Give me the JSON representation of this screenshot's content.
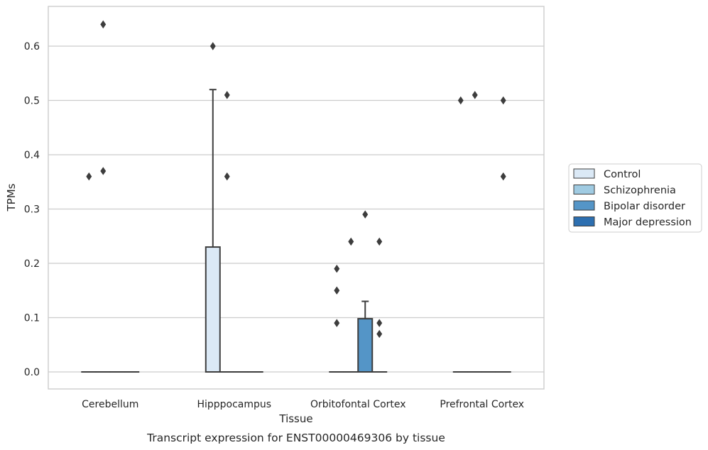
{
  "caption": "Transcript expression for ENST00000469306 by tissue",
  "colors": {
    "control": "#dbe9f6",
    "schizophrenia": "#a0cbe2",
    "bipolar": "#5495c7",
    "depression": "#2d6fb0",
    "grid": "#cccccc",
    "box_edge": "#3d3d3d",
    "outlier": "#3d3d3d"
  },
  "chart_data": {
    "type": "box",
    "xlabel": "Tissue",
    "ylabel": "TPMs",
    "ylim": [
      -0.032,
      0.66
    ],
    "yticks": [
      0.0,
      0.1,
      0.2,
      0.3,
      0.4,
      0.5,
      0.6
    ],
    "ytick_labels": [
      "0.0",
      "0.1",
      "0.2",
      "0.3",
      "0.4",
      "0.5",
      "0.6"
    ],
    "grid": "horizontal",
    "legend_position": "right",
    "categories": [
      "Cerebellum",
      "Hipppocampus",
      "Orbitofontal Cortex",
      "Prefrontal Cortex"
    ],
    "series": [
      {
        "name": "Control",
        "color_key": "control",
        "boxes": [
          {
            "category": "Cerebellum",
            "q1": 0,
            "median": 0,
            "q3": 0,
            "whisker_low": 0,
            "whisker_high": 0,
            "outliers": [
              0.36
            ]
          },
          {
            "category": "Hipppocampus",
            "q1": 0,
            "median": 0,
            "q3": 0.23,
            "whisker_low": 0,
            "whisker_high": 0.52,
            "outliers": [
              0.6
            ]
          },
          {
            "category": "Orbitofontal Cortex",
            "q1": 0,
            "median": 0,
            "q3": 0,
            "whisker_low": 0,
            "whisker_high": 0,
            "outliers": [
              0.19,
              0.15,
              0.09
            ]
          },
          {
            "category": "Prefrontal Cortex",
            "q1": 0,
            "median": 0,
            "q3": 0,
            "whisker_low": 0,
            "whisker_high": 0,
            "outliers": [
              0.5
            ]
          }
        ]
      },
      {
        "name": "Schizophrenia",
        "color_key": "schizophrenia",
        "boxes": [
          {
            "category": "Cerebellum",
            "q1": 0,
            "median": 0,
            "q3": 0,
            "whisker_low": 0,
            "whisker_high": 0,
            "outliers": [
              0.64,
              0.37
            ]
          },
          {
            "category": "Hipppocampus",
            "q1": 0,
            "median": 0,
            "q3": 0,
            "whisker_low": 0,
            "whisker_high": 0,
            "outliers": [
              0.51,
              0.36
            ]
          },
          {
            "category": "Orbitofontal Cortex",
            "q1": 0,
            "median": 0,
            "q3": 0,
            "whisker_low": 0,
            "whisker_high": 0,
            "outliers": [
              0.24
            ]
          },
          {
            "category": "Prefrontal Cortex",
            "q1": 0,
            "median": 0,
            "q3": 0,
            "whisker_low": 0,
            "whisker_high": 0,
            "outliers": [
              0.51
            ]
          }
        ]
      },
      {
        "name": "Bipolar disorder",
        "color_key": "bipolar",
        "boxes": [
          {
            "category": "Cerebellum",
            "q1": 0,
            "median": 0,
            "q3": 0,
            "whisker_low": 0,
            "whisker_high": 0,
            "outliers": []
          },
          {
            "category": "Hipppocampus",
            "q1": 0,
            "median": 0,
            "q3": 0,
            "whisker_low": 0,
            "whisker_high": 0,
            "outliers": []
          },
          {
            "category": "Orbitofontal Cortex",
            "q1": 0,
            "median": 0,
            "q3": 0.098,
            "whisker_low": 0,
            "whisker_high": 0.13,
            "outliers": [
              0.29
            ]
          },
          {
            "category": "Prefrontal Cortex",
            "q1": 0,
            "median": 0,
            "q3": 0,
            "whisker_low": 0,
            "whisker_high": 0,
            "outliers": []
          }
        ]
      },
      {
        "name": "Major depression",
        "color_key": "depression",
        "boxes": [
          {
            "category": "Cerebellum",
            "q1": 0,
            "median": 0,
            "q3": 0,
            "whisker_low": 0,
            "whisker_high": 0,
            "outliers": []
          },
          {
            "category": "Hipppocampus",
            "q1": 0,
            "median": 0,
            "q3": 0,
            "whisker_low": 0,
            "whisker_high": 0,
            "outliers": []
          },
          {
            "category": "Orbitofontal Cortex",
            "q1": 0,
            "median": 0,
            "q3": 0,
            "whisker_low": 0,
            "whisker_high": 0,
            "outliers": [
              0.24,
              0.09,
              0.07
            ]
          },
          {
            "category": "Prefrontal Cortex",
            "q1": 0,
            "median": 0,
            "q3": 0,
            "whisker_low": 0,
            "whisker_high": 0,
            "outliers": [
              0.5,
              0.36
            ]
          }
        ]
      }
    ]
  }
}
